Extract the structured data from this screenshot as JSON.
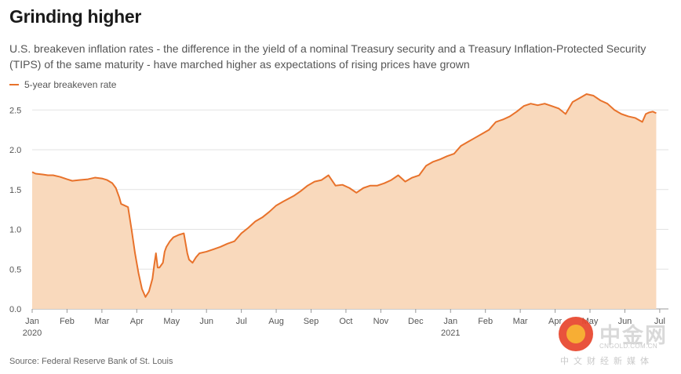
{
  "chart_data": {
    "type": "area",
    "title": "Grinding higher",
    "subtitle": "U.S. breakeven inflation rates - the difference in the yield of a nominal Treasury security and a Treasury Inflation-Protected Security (TIPS) of the same maturity - have marched higher as expectations of rising prices have grown",
    "source": "Source: Federal Reserve Bank of St. Louis",
    "xlabel": "",
    "ylabel": "",
    "ylim": [
      0,
      2.7
    ],
    "yticks": [
      "0.0",
      "0.5",
      "1.0",
      "1.5",
      "2.0",
      "2.5"
    ],
    "ytick_values": [
      0,
      0.5,
      1.0,
      1.5,
      2.0,
      2.5
    ],
    "xlim": [
      0,
      18.25
    ],
    "xtick_labels": [
      "Jan",
      "Feb",
      "Mar",
      "Apr",
      "May",
      "Jun",
      "Jul",
      "Aug",
      "Sep",
      "Oct",
      "Nov",
      "Dec",
      "Jan",
      "Feb",
      "Mar",
      "Apr",
      "May",
      "Jun",
      "Jul"
    ],
    "year_labels": [
      {
        "month": 0,
        "label": "2020"
      },
      {
        "month": 12,
        "label": "2021"
      }
    ],
    "grid": true,
    "legend_position": "top-left",
    "series": [
      {
        "name": "5-year breakeven rate",
        "color": "#e8722b",
        "fill": "#f9d9bc",
        "x": [
          0,
          0.1,
          0.3,
          0.45,
          0.6,
          0.8,
          1.0,
          1.15,
          1.35,
          1.6,
          1.8,
          2.0,
          2.15,
          2.3,
          2.4,
          2.5,
          2.55,
          2.65,
          2.75,
          2.85,
          2.95,
          3.05,
          3.15,
          3.25,
          3.35,
          3.45,
          3.5,
          3.55,
          3.6,
          3.65,
          3.75,
          3.8,
          3.85,
          3.95,
          4.05,
          4.2,
          4.35,
          4.45,
          4.5,
          4.6,
          4.7,
          4.8,
          5.0,
          5.2,
          5.4,
          5.6,
          5.8,
          6.0,
          6.2,
          6.4,
          6.6,
          6.8,
          7.0,
          7.2,
          7.5,
          7.7,
          7.9,
          8.1,
          8.3,
          8.5,
          8.7,
          8.9,
          9.1,
          9.3,
          9.5,
          9.7,
          9.9,
          10.1,
          10.3,
          10.5,
          10.7,
          10.9,
          11.1,
          11.3,
          11.5,
          11.7,
          11.9,
          12.1,
          12.3,
          12.5,
          12.7,
          12.9,
          13.1,
          13.3,
          13.5,
          13.7,
          13.9,
          14.1,
          14.3,
          14.5,
          14.7,
          14.9,
          15.1,
          15.3,
          15.5,
          15.7,
          15.9,
          16.1,
          16.3,
          16.5,
          16.7,
          16.9,
          17.1,
          17.3,
          17.5,
          17.6,
          17.7,
          17.8,
          17.9
        ],
        "values": [
          1.72,
          1.7,
          1.69,
          1.68,
          1.68,
          1.66,
          1.63,
          1.61,
          1.62,
          1.63,
          1.65,
          1.64,
          1.62,
          1.58,
          1.52,
          1.4,
          1.32,
          1.3,
          1.28,
          1.0,
          0.7,
          0.45,
          0.25,
          0.15,
          0.22,
          0.38,
          0.55,
          0.7,
          0.52,
          0.52,
          0.58,
          0.72,
          0.78,
          0.85,
          0.9,
          0.93,
          0.95,
          0.7,
          0.62,
          0.58,
          0.65,
          0.7,
          0.72,
          0.75,
          0.78,
          0.82,
          0.85,
          0.95,
          1.02,
          1.1,
          1.15,
          1.22,
          1.3,
          1.35,
          1.42,
          1.48,
          1.55,
          1.6,
          1.62,
          1.68,
          1.55,
          1.56,
          1.52,
          1.46,
          1.52,
          1.55,
          1.55,
          1.58,
          1.62,
          1.68,
          1.6,
          1.65,
          1.68,
          1.8,
          1.85,
          1.88,
          1.92,
          1.95,
          2.05,
          2.1,
          2.15,
          2.2,
          2.25,
          2.35,
          2.38,
          2.42,
          2.48,
          2.55,
          2.58,
          2.56,
          2.58,
          2.55,
          2.52,
          2.45,
          2.6,
          2.65,
          2.7,
          2.68,
          2.62,
          2.58,
          2.5,
          2.45,
          2.42,
          2.4,
          2.35,
          2.45,
          2.47,
          2.48,
          2.46
        ]
      }
    ]
  },
  "watermark": {
    "name": "中金网",
    "url": "CNGOLD.COM.CN",
    "subtitle": "中文财经新媒体"
  }
}
